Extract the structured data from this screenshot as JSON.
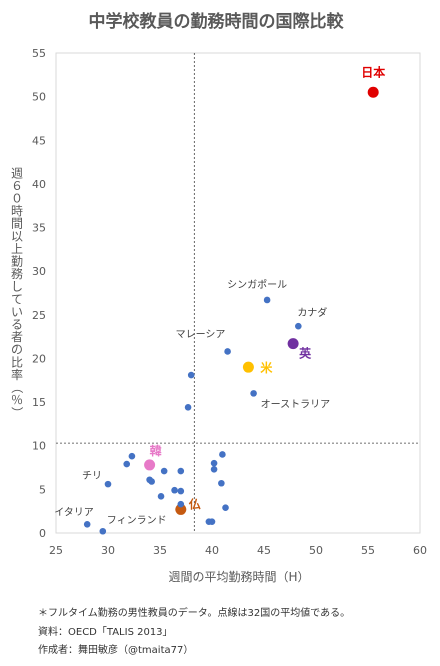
{
  "chart_data": {
    "type": "scatter",
    "title": "中学校教員の勤務時間の国際比較",
    "xlabel": "週間の平均勤務時間（H）",
    "ylabel": "週６０時間以上勤務している者の比率（％）",
    "xlim": [
      25,
      60
    ],
    "ylim": [
      0,
      55
    ],
    "xticks": [
      "25",
      "30",
      "35",
      "40",
      "45",
      "50",
      "55",
      "60"
    ],
    "yticks": [
      "0",
      "5",
      "10",
      "15",
      "20",
      "25",
      "30",
      "35",
      "40",
      "45",
      "50",
      "55"
    ],
    "grid": false,
    "reference_lines": {
      "x": 38.3,
      "y": 10.3
    },
    "default_color": "#4472C4",
    "points": [
      {
        "x": 55.5,
        "y": 50.5,
        "label": "日本",
        "color": "#E00000",
        "highlight": true
      },
      {
        "x": 47.8,
        "y": 21.7,
        "label": "英",
        "color": "#7030A0",
        "highlight": true
      },
      {
        "x": 43.5,
        "y": 19.0,
        "label": "米",
        "color": "#FFC000",
        "highlight": true
      },
      {
        "x": 34.0,
        "y": 7.8,
        "label": "韓",
        "color": "#E77AC8",
        "highlight": true
      },
      {
        "x": 37.0,
        "y": 2.7,
        "label": "仏",
        "color": "#C55A11",
        "highlight": true
      },
      {
        "x": 45.3,
        "y": 26.7,
        "label": "シンガポール"
      },
      {
        "x": 48.3,
        "y": 23.7,
        "label": "カナダ"
      },
      {
        "x": 41.5,
        "y": 20.8,
        "label": "マレーシア"
      },
      {
        "x": 44.0,
        "y": 16.0,
        "label": "オーストラリア"
      },
      {
        "x": 30.0,
        "y": 5.6,
        "label": "チリ"
      },
      {
        "x": 28.0,
        "y": 1.0,
        "label": "イタリア"
      },
      {
        "x": 29.5,
        "y": 0.2,
        "label": "フィンランド"
      },
      {
        "x": 38.0,
        "y": 18.1
      },
      {
        "x": 37.7,
        "y": 14.4
      },
      {
        "x": 32.3,
        "y": 8.8
      },
      {
        "x": 31.8,
        "y": 7.9
      },
      {
        "x": 35.4,
        "y": 7.1
      },
      {
        "x": 37.0,
        "y": 7.1
      },
      {
        "x": 34.0,
        "y": 6.1
      },
      {
        "x": 34.2,
        "y": 5.9
      },
      {
        "x": 36.4,
        "y": 4.9
      },
      {
        "x": 37.0,
        "y": 4.8
      },
      {
        "x": 35.1,
        "y": 4.2
      },
      {
        "x": 37.0,
        "y": 3.3
      },
      {
        "x": 40.2,
        "y": 8.0
      },
      {
        "x": 40.2,
        "y": 7.3
      },
      {
        "x": 41.0,
        "y": 9.0
      },
      {
        "x": 40.9,
        "y": 5.7
      },
      {
        "x": 39.7,
        "y": 1.3
      },
      {
        "x": 40.0,
        "y": 1.3
      },
      {
        "x": 41.3,
        "y": 2.9
      }
    ]
  },
  "footnotes": {
    "note": "＊フルタイム勤務の男性教員のデータ。点線は32国の平均値である。",
    "source": "資料：OECD「TALIS 2013」",
    "author": "作成者：舞田敏彦（@tmaita77）"
  }
}
